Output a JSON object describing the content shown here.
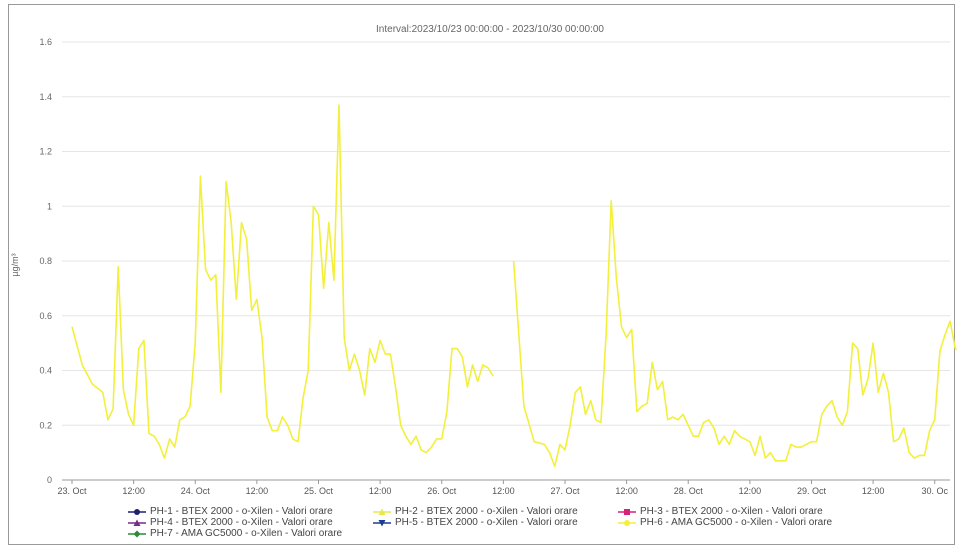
{
  "chart_data": {
    "type": "line",
    "title": "Interval:2023/10/23 00:00:00 - 2023/10/30 00:00:00",
    "ylabel": "µg/m³",
    "ylim": [
      0,
      1.6
    ],
    "yticks": [
      "0",
      "0.2",
      "0.4",
      "0.6",
      "0.8",
      "1",
      "1.2",
      "1.4",
      "1.6"
    ],
    "xticks": [
      "23. Oct",
      "12:00",
      "24. Oct",
      "12:00",
      "25. Oct",
      "12:00",
      "26. Oct",
      "12:00",
      "27. Oct",
      "12:00",
      "28. Oct",
      "12:00",
      "29. Oct",
      "12:00",
      "30. Oc"
    ],
    "x_unit": "hours since 23. Oct 00:00",
    "grid": true,
    "legend_position": "bottom",
    "series": [
      {
        "name": "PH-1 - BTEX 2000 - o-Xilen - Valori orare",
        "color": "#1f1f6e",
        "marker": "circle",
        "values": []
      },
      {
        "name": "PH-2 - BTEX 2000 - o-Xilen - Valori orare",
        "color": "#e8e84a",
        "marker": "triangle-up",
        "values": []
      },
      {
        "name": "PH-3 - BTEX 2000 - o-Xilen - Valori orare",
        "color": "#d6237a",
        "marker": "square",
        "values": []
      },
      {
        "name": "PH-4 - BTEX 2000 - o-Xilen - Valori orare",
        "color": "#7a2a8c",
        "marker": "triangle-up",
        "values": []
      },
      {
        "name": "PH-5 - BTEX 2000 - o-Xilen - Valori orare",
        "color": "#1a3d8f",
        "marker": "triangle-down",
        "values": []
      },
      {
        "name": "PH-6 - AMA GC5000 - o-Xilen - Valori orare",
        "color": "#f2f03a",
        "marker": "circle",
        "segments": [
          [
            [
              0,
              0.56
            ],
            [
              2,
              0.42
            ],
            [
              4,
              0.35
            ],
            [
              6,
              0.32
            ],
            [
              7,
              0.22
            ],
            [
              8,
              0.26
            ],
            [
              9,
              0.78
            ],
            [
              10,
              0.33
            ],
            [
              11,
              0.24
            ],
            [
              12,
              0.2
            ],
            [
              13,
              0.48
            ],
            [
              14,
              0.51
            ],
            [
              15,
              0.17
            ],
            [
              16,
              0.16
            ],
            [
              17,
              0.13
            ],
            [
              18,
              0.08
            ],
            [
              19,
              0.15
            ],
            [
              20,
              0.12
            ],
            [
              21,
              0.22
            ],
            [
              22,
              0.23
            ],
            [
              23,
              0.27
            ],
            [
              24,
              0.5
            ],
            [
              25,
              1.11
            ],
            [
              26,
              0.77
            ],
            [
              27,
              0.73
            ],
            [
              28,
              0.75
            ],
            [
              29,
              0.32
            ],
            [
              30,
              1.09
            ],
            [
              31,
              0.94
            ],
            [
              32,
              0.66
            ],
            [
              33,
              0.94
            ],
            [
              34,
              0.88
            ],
            [
              35,
              0.62
            ],
            [
              36,
              0.66
            ],
            [
              37,
              0.52
            ],
            [
              38,
              0.23
            ],
            [
              39,
              0.18
            ],
            [
              40,
              0.18
            ],
            [
              41,
              0.23
            ],
            [
              42,
              0.2
            ],
            [
              43,
              0.15
            ],
            [
              44,
              0.14
            ],
            [
              45,
              0.3
            ],
            [
              46,
              0.4
            ],
            [
              47,
              1.0
            ],
            [
              48,
              0.97
            ],
            [
              49,
              0.7
            ],
            [
              50,
              0.94
            ],
            [
              51,
              0.73
            ],
            [
              52,
              1.37
            ],
            [
              53,
              0.52
            ],
            [
              54,
              0.4
            ],
            [
              55,
              0.46
            ],
            [
              56,
              0.4
            ],
            [
              57,
              0.31
            ],
            [
              58,
              0.48
            ],
            [
              59,
              0.43
            ],
            [
              60,
              0.51
            ],
            [
              61,
              0.46
            ],
            [
              62,
              0.46
            ],
            [
              63,
              0.34
            ],
            [
              64,
              0.2
            ],
            [
              65,
              0.16
            ],
            [
              66,
              0.13
            ],
            [
              67,
              0.16
            ],
            [
              68,
              0.11
            ],
            [
              69,
              0.1
            ],
            [
              70,
              0.12
            ],
            [
              71,
              0.15
            ],
            [
              72,
              0.15
            ],
            [
              73,
              0.25
            ],
            [
              74,
              0.48
            ],
            [
              75,
              0.48
            ],
            [
              76,
              0.45
            ],
            [
              77,
              0.34
            ],
            [
              78,
              0.42
            ],
            [
              79,
              0.36
            ],
            [
              80,
              0.42
            ],
            [
              81,
              0.41
            ],
            [
              82,
              0.38
            ]
          ],
          [
            [
              86,
              0.8
            ],
            [
              88,
              0.27
            ],
            [
              90,
              0.14
            ],
            [
              92,
              0.13
            ],
            [
              93,
              0.1
            ],
            [
              94,
              0.05
            ],
            [
              95,
              0.13
            ],
            [
              96,
              0.11
            ],
            [
              97,
              0.2
            ],
            [
              98,
              0.32
            ],
            [
              99,
              0.34
            ],
            [
              100,
              0.24
            ],
            [
              101,
              0.29
            ],
            [
              102,
              0.22
            ],
            [
              103,
              0.21
            ],
            [
              104,
              0.53
            ],
            [
              105,
              1.02
            ],
            [
              106,
              0.74
            ],
            [
              107,
              0.56
            ],
            [
              108,
              0.52
            ],
            [
              109,
              0.55
            ],
            [
              110,
              0.25
            ],
            [
              111,
              0.27
            ],
            [
              112,
              0.28
            ],
            [
              113,
              0.43
            ],
            [
              114,
              0.33
            ],
            [
              115,
              0.36
            ],
            [
              116,
              0.22
            ],
            [
              117,
              0.23
            ],
            [
              118,
              0.22
            ],
            [
              119,
              0.24
            ],
            [
              120,
              0.2
            ],
            [
              121,
              0.16
            ],
            [
              122,
              0.16
            ],
            [
              123,
              0.21
            ],
            [
              124,
              0.22
            ],
            [
              125,
              0.19
            ],
            [
              126,
              0.13
            ],
            [
              127,
              0.16
            ],
            [
              128,
              0.13
            ],
            [
              129,
              0.18
            ],
            [
              130,
              0.16
            ],
            [
              131,
              0.15
            ],
            [
              132,
              0.14
            ],
            [
              133,
              0.09
            ],
            [
              134,
              0.16
            ],
            [
              135,
              0.08
            ],
            [
              136,
              0.1
            ],
            [
              137,
              0.07
            ],
            [
              138,
              0.07
            ],
            [
              139,
              0.07
            ],
            [
              140,
              0.13
            ],
            [
              141,
              0.12
            ],
            [
              142,
              0.12
            ],
            [
              143,
              0.13
            ],
            [
              144,
              0.14
            ],
            [
              145,
              0.14
            ],
            [
              146,
              0.24
            ],
            [
              147,
              0.27
            ],
            [
              148,
              0.29
            ],
            [
              149,
              0.23
            ],
            [
              150,
              0.2
            ],
            [
              151,
              0.25
            ],
            [
              152,
              0.5
            ],
            [
              153,
              0.48
            ],
            [
              154,
              0.31
            ],
            [
              155,
              0.37
            ],
            [
              156,
              0.5
            ],
            [
              157,
              0.32
            ],
            [
              158,
              0.39
            ],
            [
              159,
              0.32
            ],
            [
              160,
              0.14
            ],
            [
              161,
              0.15
            ],
            [
              162,
              0.19
            ],
            [
              163,
              0.1
            ],
            [
              164,
              0.08
            ],
            [
              165,
              0.09
            ],
            [
              166,
              0.09
            ],
            [
              167,
              0.18
            ],
            [
              168,
              0.22
            ],
            [
              169,
              0.47
            ],
            [
              170,
              0.53
            ],
            [
              171,
              0.58
            ],
            [
              172,
              0.48
            ],
            [
              173,
              0.47
            ]
          ]
        ]
      },
      {
        "name": "PH-7 - AMA GC5000 - o-Xilen - Valori orare",
        "color": "#2a8c3a",
        "marker": "diamond",
        "values": []
      }
    ]
  }
}
